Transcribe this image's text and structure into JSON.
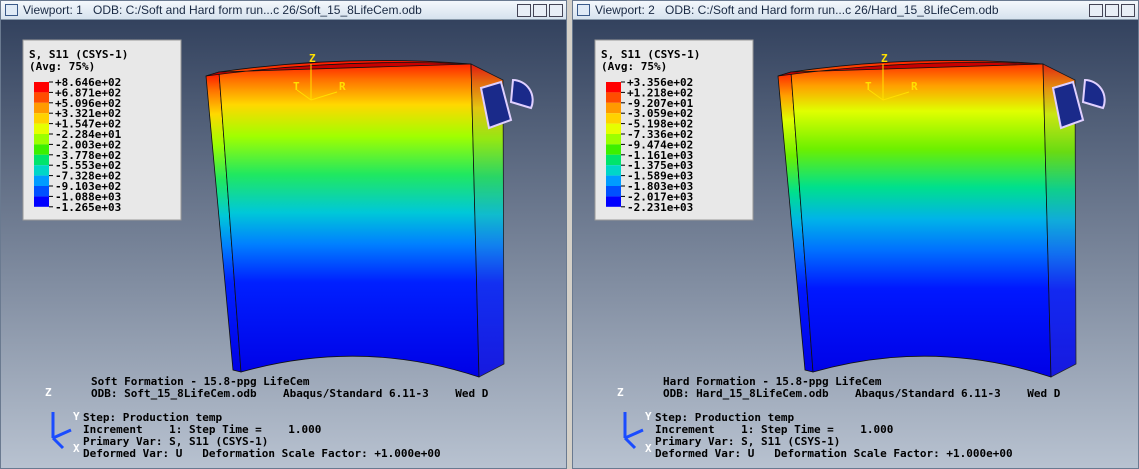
{
  "viewports": [
    {
      "label": "Viewport: 1",
      "odb_path": "ODB: C:/Soft and Hard form run...c 26/Soft_15_8LifeCem.odb",
      "legend": {
        "title": "S, S11 (CSYS-1)",
        "subtitle": "(Avg: 75%)",
        "values": [
          "+8.646e+02",
          "+6.871e+02",
          "+5.096e+02",
          "+3.321e+02",
          "+1.547e+02",
          "-2.284e+01",
          "-2.003e+02",
          "-3.778e+02",
          "-5.553e+02",
          "-7.328e+02",
          "-9.103e+02",
          "-1.088e+03",
          "-1.265e+03"
        ]
      },
      "model_axes": [
        "Z",
        "T",
        "R"
      ],
      "triad": [
        "Z",
        "Y",
        "X"
      ],
      "info": [
        "Soft Formation - 15.8-ppg LifeCem",
        "ODB: Soft_15_8LifeCem.odb    Abaqus/Standard 6.11-3    Wed D",
        "Step: Production temp",
        "Increment    1: Step Time =    1.000",
        "Primary Var: S, S11 (CSYS-1)",
        "Deformed Var: U   Deformation Scale Factor: +1.000e+00"
      ]
    },
    {
      "label": "Viewport: 2",
      "odb_path": "ODB: C:/Soft and Hard form run...c 26/Hard_15_8LifeCem.odb",
      "legend": {
        "title": "S, S11 (CSYS-1)",
        "subtitle": "(Avg: 75%)",
        "values": [
          "+3.356e+02",
          "+1.218e+02",
          "-9.207e+01",
          "-3.059e+02",
          "-5.198e+02",
          "-7.336e+02",
          "-9.474e+02",
          "-1.161e+03",
          "-1.375e+03",
          "-1.589e+03",
          "-1.803e+03",
          "-2.017e+03",
          "-2.231e+03"
        ]
      },
      "model_axes": [
        "Z",
        "T",
        "R"
      ],
      "triad": [
        "Z",
        "Y",
        "X"
      ],
      "info": [
        "Hard Formation - 15.8-ppg LifeCem",
        "ODB: Hard_15_8LifeCem.odb    Abaqus/Standard 6.11-3    Wed D",
        "Step: Production temp",
        "Increment    1: Step Time =    1.000",
        "Primary Var: S, S11 (CSYS-1)",
        "Deformed Var: U   Deformation Scale Factor: +1.000e+00"
      ]
    }
  ]
}
